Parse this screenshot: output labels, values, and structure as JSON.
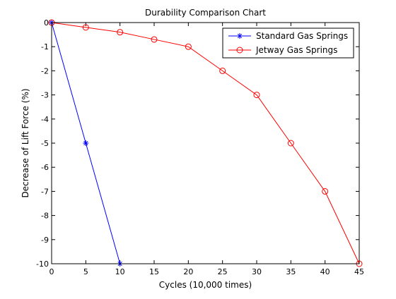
{
  "chart_data": {
    "type": "line",
    "title": "Durability Comparison Chart",
    "xlabel": "Cycles (10,000 times)",
    "ylabel": "Decrease of Lift Force (%)",
    "xlim": [
      0,
      45
    ],
    "ylim": [
      -10,
      0
    ],
    "xticks": [
      0,
      5,
      10,
      15,
      20,
      25,
      30,
      35,
      40,
      45
    ],
    "yticks": [
      0,
      -1,
      -2,
      -3,
      -4,
      -5,
      -6,
      -7,
      -8,
      -9,
      -10
    ],
    "grid": false,
    "legend_position": "top-right",
    "series": [
      {
        "name": "Standard Gas Springs",
        "color": "#0000ff",
        "marker": "asterisk",
        "x": [
          0,
          5,
          10
        ],
        "y": [
          0,
          -5,
          -10
        ]
      },
      {
        "name": "Jetway Gas Springs",
        "color": "#ff0000",
        "marker": "circle",
        "x": [
          0,
          5,
          10,
          15,
          20,
          25,
          30,
          35,
          40,
          45
        ],
        "y": [
          0,
          -0.2,
          -0.4,
          -0.7,
          -1,
          -2,
          -3,
          -5,
          -7,
          -10
        ]
      }
    ]
  }
}
